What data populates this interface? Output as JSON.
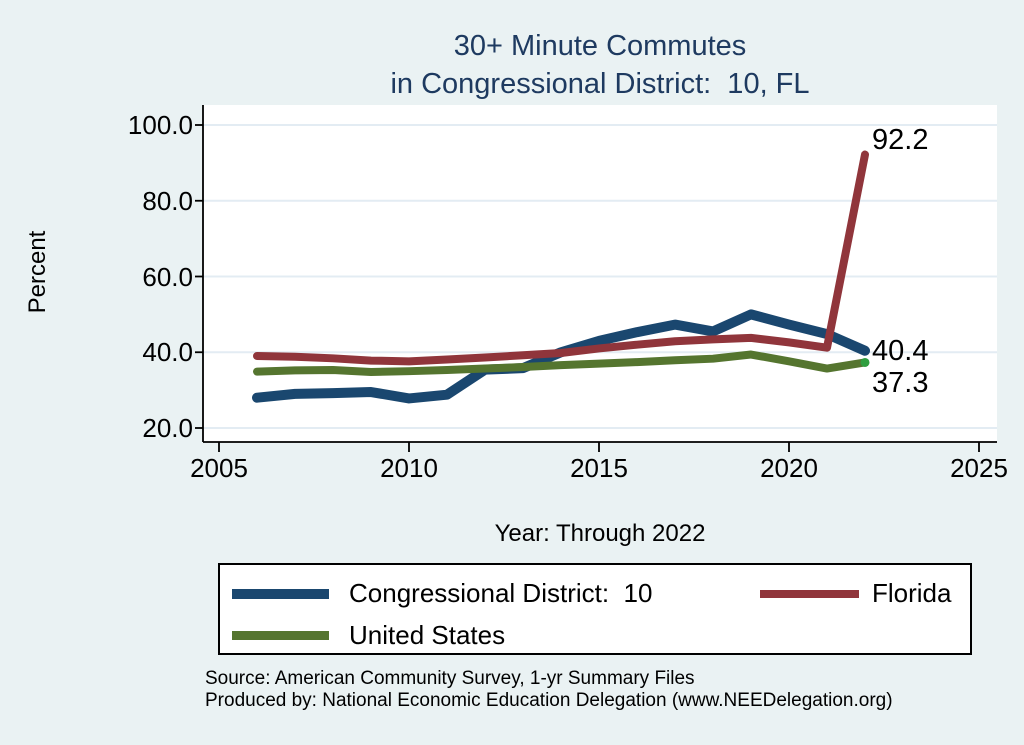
{
  "title": {
    "line1": "30+ Minute Commutes",
    "line2": "in Congressional District:  10, FL"
  },
  "axes": {
    "y_label": "Percent",
    "x_label": "Year: Through 2022"
  },
  "footer": {
    "line1": "Source: American Community Survey, 1-yr Summary Files",
    "line2": "Produced by: National Economic Education Delegation (www.NEEDelegation.org)"
  },
  "colors": {
    "background": "#eaf2f3",
    "plot_bg": "#ffffff",
    "grid": "#e3ecf3",
    "axis": "#000000",
    "title": "#1e3a60",
    "navy": "#1a476f",
    "maroon": "#90353b",
    "olive": "#55752f",
    "marker_green": "#2f9e3f"
  },
  "chart_data": {
    "type": "line",
    "title": "30+ Minute Commutes in Congressional District:  10, FL",
    "xlabel": "Year: Through 2022",
    "ylabel": "Percent",
    "grid": true,
    "legend_position": "bottom",
    "xlim": [
      2004.5,
      2025.5
    ],
    "ylim": [
      16,
      105
    ],
    "x": [
      2006,
      2007,
      2008,
      2009,
      2010,
      2011,
      2012,
      2013,
      2014,
      2015,
      2016,
      2017,
      2018,
      2019,
      2020,
      2021,
      2022
    ],
    "series": [
      {
        "name": "Congressional District:  10",
        "color_key": "navy",
        "end_label": "40.4",
        "end_marker": false,
        "values": [
          28.0,
          29.0,
          29.2,
          29.5,
          27.8,
          28.8,
          35.4,
          35.8,
          40.0,
          43.0,
          45.3,
          47.3,
          45.5,
          50.0,
          47.3,
          44.8,
          40.4
        ]
      },
      {
        "name": "Florida",
        "color_key": "maroon",
        "end_label": "92.2",
        "end_marker": false,
        "values": [
          39.0,
          38.8,
          38.4,
          37.8,
          37.6,
          38.1,
          38.6,
          39.2,
          39.8,
          41.0,
          42.0,
          42.9,
          43.4,
          43.8,
          42.6,
          41.2,
          92.2
        ]
      },
      {
        "name": "United States",
        "color_key": "olive",
        "end_label": "37.3",
        "end_marker": true,
        "values": [
          34.9,
          35.2,
          35.3,
          34.8,
          35.0,
          35.3,
          35.7,
          36.1,
          36.6,
          37.0,
          37.4,
          37.9,
          38.3,
          39.4,
          37.6,
          35.7,
          37.3
        ]
      }
    ],
    "x_ticks": [
      {
        "label": "2005",
        "value": 2005
      },
      {
        "label": "2010",
        "value": 2010
      },
      {
        "label": "2015",
        "value": 2015
      },
      {
        "label": "2020",
        "value": 2020
      },
      {
        "label": "2025",
        "value": 2025
      }
    ],
    "y_ticks": [
      {
        "label": "20.0",
        "value": 20
      },
      {
        "label": "40.0",
        "value": 40
      },
      {
        "label": "60.0",
        "value": 60
      },
      {
        "label": "80.0",
        "value": 80
      },
      {
        "label": "100.0",
        "value": 100
      }
    ]
  }
}
